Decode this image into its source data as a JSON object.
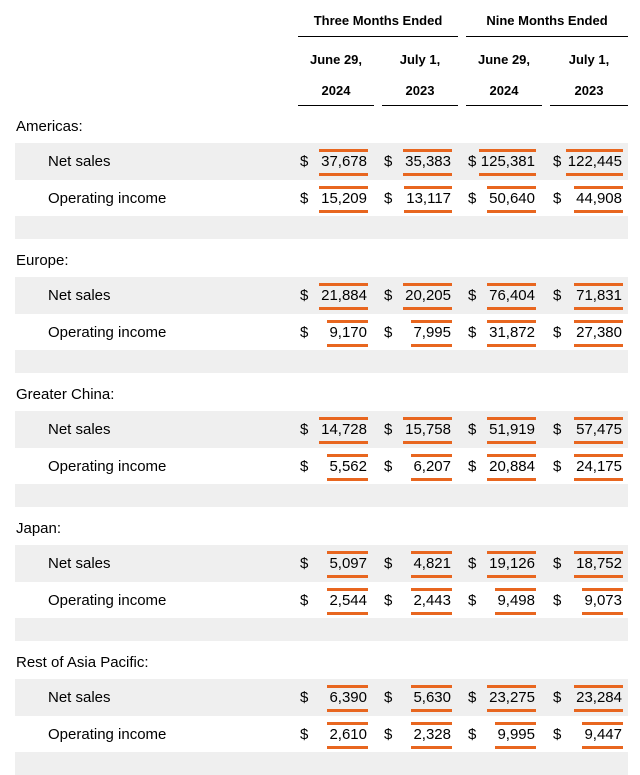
{
  "header": {
    "group_three": "Three Months Ended",
    "group_nine": "Nine Months Ended",
    "columns": [
      {
        "line1": "June 29,",
        "line2": "2024"
      },
      {
        "line1": "July 1,",
        "line2": "2023"
      },
      {
        "line1": "June 29,",
        "line2": "2024"
      },
      {
        "line1": "July 1,",
        "line2": "2023"
      }
    ]
  },
  "currency_symbol": "$",
  "accent_color": "#e8661f",
  "shade_color": "#efefef",
  "segments": [
    {
      "name": "Americas:",
      "rows": [
        {
          "label": "Net sales",
          "values": [
            "37,678",
            "35,383",
            "125,381",
            "122,445"
          ]
        },
        {
          "label": "Operating income",
          "values": [
            "15,209",
            "13,117",
            "50,640",
            "44,908"
          ]
        }
      ]
    },
    {
      "name": "Europe:",
      "rows": [
        {
          "label": "Net sales",
          "values": [
            "21,884",
            "20,205",
            "76,404",
            "71,831"
          ]
        },
        {
          "label": "Operating income",
          "values": [
            "9,170",
            "7,995",
            "31,872",
            "27,380"
          ]
        }
      ]
    },
    {
      "name": "Greater China:",
      "rows": [
        {
          "label": "Net sales",
          "values": [
            "14,728",
            "15,758",
            "51,919",
            "57,475"
          ]
        },
        {
          "label": "Operating income",
          "values": [
            "5,562",
            "6,207",
            "20,884",
            "24,175"
          ]
        }
      ]
    },
    {
      "name": "Japan:",
      "rows": [
        {
          "label": "Net sales",
          "values": [
            "5,097",
            "4,821",
            "19,126",
            "18,752"
          ]
        },
        {
          "label": "Operating income",
          "values": [
            "2,544",
            "2,443",
            "9,498",
            "9,073"
          ]
        }
      ]
    },
    {
      "name": "Rest of Asia Pacific:",
      "rows": [
        {
          "label": "Net sales",
          "values": [
            "6,390",
            "5,630",
            "23,275",
            "23,284"
          ]
        },
        {
          "label": "Operating income",
          "values": [
            "2,610",
            "2,328",
            "9,995",
            "9,447"
          ]
        }
      ]
    }
  ]
}
